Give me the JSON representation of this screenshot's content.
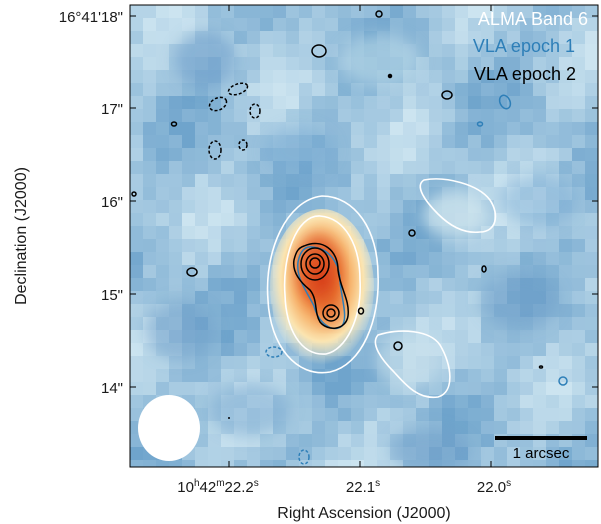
{
  "figure": {
    "legend": {
      "alma": "ALMA Band 6",
      "vla1": "VLA epoch 1",
      "vla2": "VLA epoch 2"
    },
    "scale_bar_label": "1 arcsec",
    "x_axis_label": "Right Ascension (J2000)",
    "y_axis_label": "Declination (J2000)",
    "x_ticks": [
      {
        "prefix": "10",
        "h": "h",
        "mid1": "42",
        "m": "m",
        "mid2": "22.2",
        "s": "s"
      },
      {
        "prefix": "",
        "h": "",
        "mid1": "",
        "m": "",
        "mid2": "22.1",
        "s": "s"
      },
      {
        "prefix": "",
        "h": "",
        "mid1": "",
        "m": "",
        "mid2": "22.0",
        "s": "s"
      }
    ],
    "y_ticks": [
      "16°41'18\"",
      "17\"",
      "16\"",
      "15\"",
      "14\""
    ],
    "colors": {
      "alma_contour": "#ffffff",
      "vla1_contour": "#2e7fb8",
      "vla2_contour": "#000000",
      "background_low": "#6fa4cc",
      "background_high": "#c9e2ee",
      "peak": "#e0531f"
    }
  }
}
